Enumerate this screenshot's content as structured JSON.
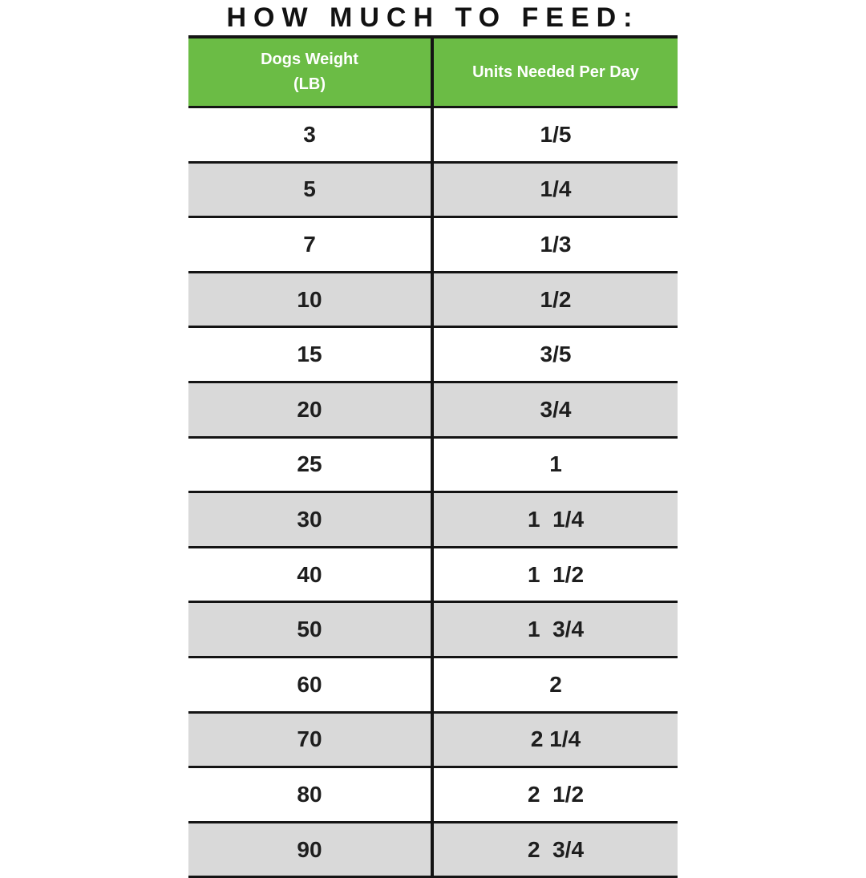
{
  "title": "HOW MUCH TO FEED:",
  "table": {
    "headers": {
      "col1_line1": "Dogs Weight",
      "col1_line2": "(LB)",
      "col2": "Units Needed Per Day"
    },
    "rows": [
      {
        "weight": "3",
        "units": "1/5"
      },
      {
        "weight": "5",
        "units": "1/4"
      },
      {
        "weight": "7",
        "units": "1/3"
      },
      {
        "weight": "10",
        "units": "1/2"
      },
      {
        "weight": "15",
        "units": "3/5"
      },
      {
        "weight": "20",
        "units": "3/4"
      },
      {
        "weight": "25",
        "units": "1"
      },
      {
        "weight": "30",
        "units": "1  1/4"
      },
      {
        "weight": "40",
        "units": "1  1/2"
      },
      {
        "weight": "50",
        "units": "1  3/4"
      },
      {
        "weight": "60",
        "units": "2"
      },
      {
        "weight": "70",
        "units": "2 1/4"
      },
      {
        "weight": "80",
        "units": "2  1/2"
      },
      {
        "weight": "90",
        "units": "2  3/4"
      }
    ]
  },
  "colors": {
    "header_green": "#6bbc45",
    "row_alt_gray": "#d9d9d9",
    "line_black": "#141414"
  }
}
